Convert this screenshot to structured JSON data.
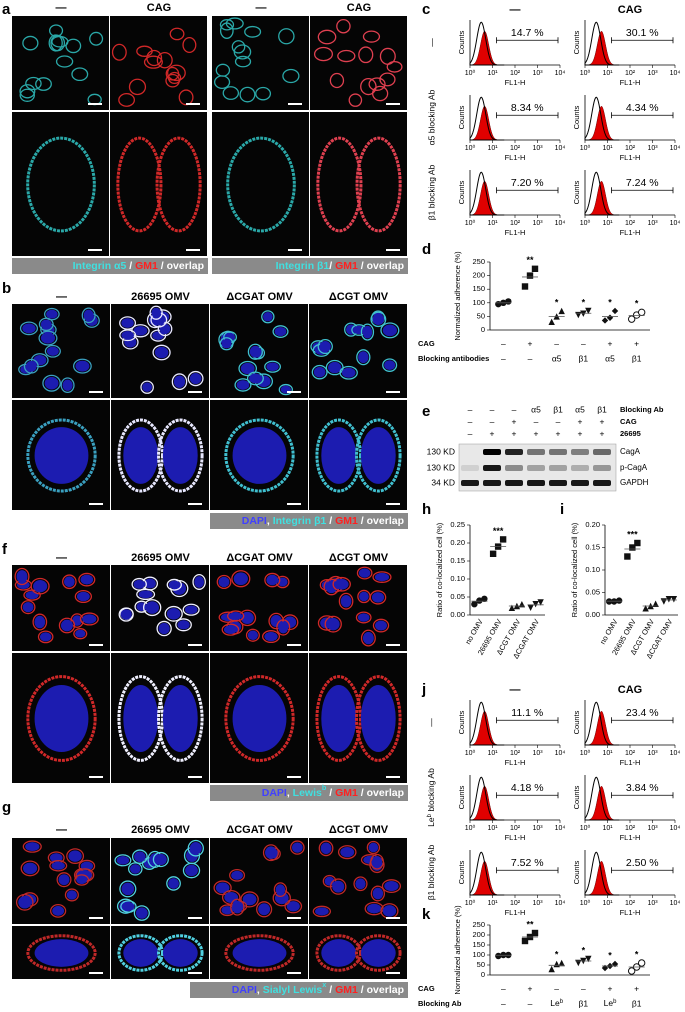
{
  "panels": {
    "a": {
      "label": "a",
      "headers": [
        "—",
        "CAG",
        "—",
        "CAG"
      ],
      "captions": [
        [
          {
            "text": "Integrin α5",
            "color": "#40e0e0"
          },
          {
            "text": " / ",
            "color": "#ffffff"
          },
          {
            "text": "GM1",
            "color": "#ff2020"
          },
          {
            "text": " / overlap",
            "color": "#ffffff"
          }
        ],
        [
          {
            "text": "Integrin β1",
            "color": "#40e0e0"
          },
          {
            "text": "/ ",
            "color": "#ffffff"
          },
          {
            "text": "GM1",
            "color": "#ff2020"
          },
          {
            "text": " / overlap",
            "color": "#ffffff"
          }
        ]
      ]
    },
    "b": {
      "label": "b",
      "headers": [
        "—",
        "26695 OMV",
        "ΔCGAT OMV",
        "ΔCGT OMV"
      ],
      "caption": [
        {
          "text": "DAPI",
          "color": "#4040ff"
        },
        {
          "text": ", ",
          "color": "#ffffff"
        },
        {
          "text": "Integrin β1",
          "color": "#40e0e0"
        },
        {
          "text": " / ",
          "color": "#ffffff"
        },
        {
          "text": "GM1",
          "color": "#ff2020"
        },
        {
          "text": " / overlap",
          "color": "#ffffff"
        }
      ]
    },
    "f": {
      "label": "f",
      "headers": [
        "—",
        "26695 OMV",
        "ΔCGAT OMV",
        "ΔCGT OMV"
      ],
      "caption": [
        {
          "text": "DAPI",
          "color": "#4040ff"
        },
        {
          "text": ", ",
          "color": "#ffffff"
        },
        {
          "text": "Lewis",
          "color": "#40e0e0"
        },
        {
          "text": "b",
          "color": "#40e0e0",
          "sup": true
        },
        {
          "text": " / ",
          "color": "#ffffff"
        },
        {
          "text": "GM1",
          "color": "#ff2020"
        },
        {
          "text": " / overlap",
          "color": "#ffffff"
        }
      ]
    },
    "g": {
      "label": "g",
      "headers": [
        "—",
        "26695 OMV",
        "ΔCGAT OMV",
        "ΔCGT OMV"
      ],
      "caption": [
        {
          "text": "DAPI",
          "color": "#4040ff"
        },
        {
          "text": ", ",
          "color": "#ffffff"
        },
        {
          "text": "Sialyl Lewis",
          "color": "#40e0e0"
        },
        {
          "text": "x",
          "color": "#40e0e0",
          "sup": true
        },
        {
          "text": " / ",
          "color": "#ffffff"
        },
        {
          "text": "GM1",
          "color": "#ff2020"
        },
        {
          "text": " / overlap",
          "color": "#ffffff"
        }
      ]
    },
    "c": {
      "label": "c",
      "headers": [
        "—",
        "CAG"
      ],
      "row_labels": [
        "—",
        "α5 blocking Ab",
        "β1 blocking Ab"
      ],
      "percentages": [
        [
          "14.7 %",
          "30.1 %"
        ],
        [
          "8.34 %",
          "4.34 %"
        ],
        [
          "7.20 %",
          "7.24 %"
        ]
      ],
      "ylabel": "Counts",
      "xlabel": "FL1-H",
      "xscale": "log",
      "xlim": [
        1,
        10000
      ],
      "xticks": [
        {
          "value": 1,
          "label": "10⁰"
        },
        {
          "value": 10,
          "label": "10¹"
        },
        {
          "value": 100,
          "label": "10²"
        },
        {
          "value": 1000,
          "label": "10³"
        },
        {
          "value": 10000,
          "label": "10⁴"
        }
      ]
    },
    "d": {
      "label": "d",
      "type": "dot",
      "ylabel": "Normalized adherence (%)",
      "ylim": [
        0,
        250
      ],
      "yticks": [
        0,
        50,
        100,
        150,
        200,
        250
      ],
      "values": [
        [
          95,
          100,
          105
        ],
        [
          160,
          200,
          225
        ],
        [
          30,
          50,
          70
        ],
        [
          55,
          60,
          70
        ],
        [
          35,
          45,
          70
        ],
        [
          40,
          55,
          65
        ]
      ],
      "markers": [
        "circle",
        "square",
        "triangle-up",
        "triangle-down",
        "diamond",
        "circle-open"
      ],
      "annotations": [
        null,
        "**",
        "*",
        "*",
        "*",
        "*"
      ],
      "rows": [
        {
          "label": "CAG",
          "entries": [
            "–",
            "+",
            "–",
            "–",
            "+",
            "+"
          ]
        },
        {
          "label": "Blocking antibodies",
          "entries": [
            "–",
            "–",
            "α5",
            "β1",
            "α5",
            "β1"
          ]
        }
      ]
    },
    "e": {
      "label": "e",
      "header_rows": [
        {
          "label": "Blocking Ab",
          "entries": [
            "–",
            "–",
            "–",
            "α5",
            "β1",
            "α5",
            "β1"
          ]
        },
        {
          "label": "CAG",
          "entries": [
            "–",
            "–",
            "+",
            "–",
            "–",
            "+",
            "+"
          ]
        },
        {
          "label": "26695",
          "entries": [
            "–",
            "+",
            "+",
            "+",
            "+",
            "+",
            "+"
          ]
        }
      ],
      "sizes": [
        "130 KD",
        "130 KD",
        "34 KD"
      ],
      "bands": [
        "CagA",
        "p-CagA",
        "GAPDH"
      ]
    },
    "h": {
      "label": "h",
      "type": "dot",
      "ylabel": "Ratio of co-localized cell (%)",
      "ylim": [
        0,
        0.25
      ],
      "yticks": [
        {
          "value": 0,
          "label": "0.00"
        },
        0.05,
        {
          "value": 0.1,
          "label": "0.10"
        },
        0.15,
        {
          "value": 0.2,
          "label": "0.20"
        },
        0.25
      ],
      "categories": [
        "no OMV",
        "26695 OMV",
        "ΔCGT OMV",
        "ΔCGAT OMV"
      ],
      "values": [
        [
          0.03,
          0.04,
          0.045
        ],
        [
          0.17,
          0.19,
          0.21
        ],
        [
          0.02,
          0.025,
          0.03
        ],
        [
          0.02,
          0.03,
          0.035
        ]
      ],
      "markers": [
        "circle",
        "square",
        "triangle-up",
        "triangle-down"
      ],
      "annotations": [
        null,
        "***",
        null,
        null
      ]
    },
    "i": {
      "label": "i",
      "type": "dot",
      "ylabel": "Ratio of co-localized cell (%)",
      "ylim": [
        0,
        0.2
      ],
      "yticks": [
        {
          "value": 0,
          "label": "0.00"
        },
        0.05,
        {
          "value": 0.1,
          "label": "0.10"
        },
        0.15,
        {
          "value": 0.2,
          "label": "0.20"
        }
      ],
      "categories": [
        "no OMV",
        "26695 OMV",
        "ΔCGT OMV",
        "ΔCGAT OMV"
      ],
      "values": [
        [
          0.03,
          0.03,
          0.032
        ],
        [
          0.13,
          0.15,
          0.16
        ],
        [
          0.015,
          0.02,
          0.025
        ],
        [
          0.03,
          0.035,
          0.035
        ]
      ],
      "markers": [
        "circle",
        "square",
        "triangle-up",
        "triangle-down"
      ],
      "annotations": [
        null,
        "***",
        null,
        null
      ]
    },
    "j": {
      "label": "j",
      "headers": [
        "—",
        "CAG"
      ],
      "row_labels": [
        [
          {
            "text": "—"
          }
        ],
        [
          {
            "text": "Le"
          },
          {
            "text": "b",
            "sup": true
          },
          {
            "text": " blocking Ab"
          }
        ],
        [
          {
            "text": "β1 blocking Ab"
          }
        ]
      ],
      "percentages": [
        [
          "11.1 %",
          "23.4 %"
        ],
        [
          "4.18 %",
          "3.84 %"
        ],
        [
          "7.52 %",
          "2.50 %"
        ]
      ],
      "ylabel": "Counts",
      "xlabel": "FL1-H",
      "xscale": "log",
      "xlim": [
        1,
        10000
      ],
      "xticks": [
        {
          "value": 1,
          "label": "10⁰"
        },
        {
          "value": 10,
          "label": "10¹"
        },
        {
          "value": 100,
          "label": "10²"
        },
        {
          "value": 1000,
          "label": "10³"
        },
        {
          "value": 10000,
          "label": "10⁴"
        }
      ]
    },
    "k": {
      "label": "k",
      "type": "dot",
      "ylabel": "Normalized adherence (%)",
      "ylim": [
        0,
        250
      ],
      "yticks": [
        0,
        50,
        100,
        150,
        200,
        250
      ],
      "values": [
        [
          95,
          100,
          100
        ],
        [
          170,
          190,
          210
        ],
        [
          30,
          55,
          60
        ],
        [
          60,
          70,
          80
        ],
        [
          35,
          45,
          55
        ],
        [
          20,
          40,
          60
        ]
      ],
      "markers": [
        "circle",
        "square",
        "triangle-up",
        "triangle-down",
        "diamond",
        "circle-open"
      ],
      "annotations": [
        null,
        "**",
        "*",
        "*",
        "*",
        "*"
      ],
      "rows": [
        {
          "label": "CAG",
          "entries": [
            "–",
            "+",
            "–",
            "–",
            "+",
            "+"
          ]
        },
        {
          "label": "Blocking Ab",
          "entries": [
            "–",
            "–",
            [
              {
                "text": "Le"
              },
              {
                "text": "b",
                "sup": true
              }
            ],
            "β1",
            [
              {
                "text": "Le"
              },
              {
                "text": "b",
                "sup": true
              }
            ],
            "β1"
          ]
        }
      ]
    }
  }
}
